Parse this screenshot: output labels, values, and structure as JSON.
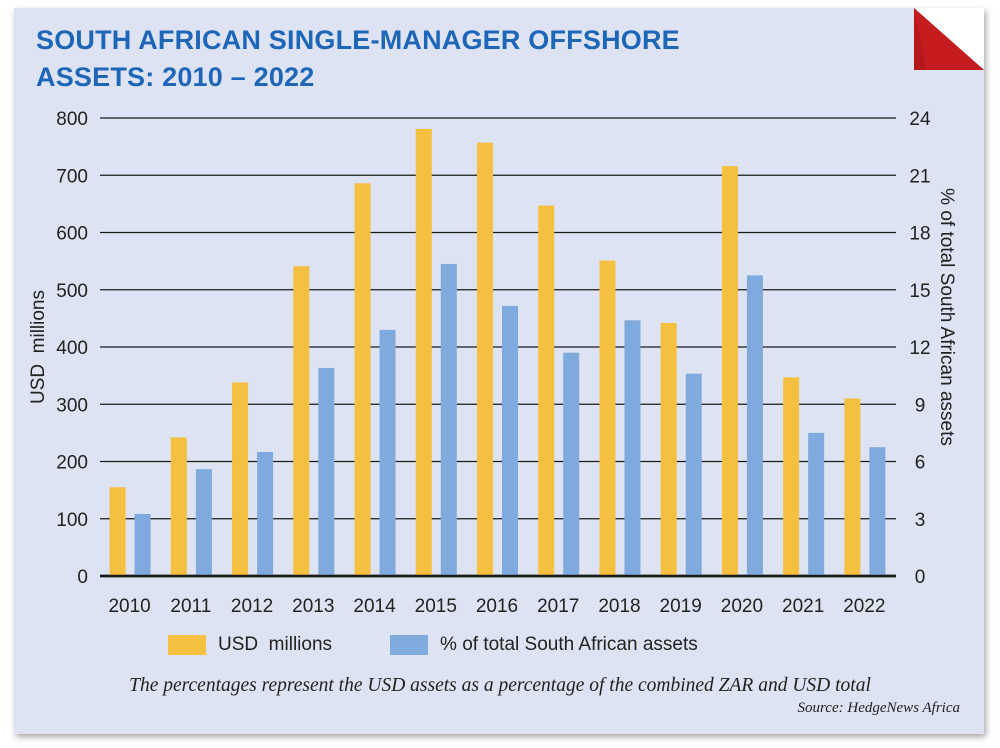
{
  "title_lines": [
    "SOUTH AFRICAN SINGLE-MANAGER OFFSHORE",
    "ASSETS: 2010 – 2022"
  ],
  "footnote": "The percentages represent the USD assets as a percentage of the combined ZAR and USD total",
  "source": "Source: HedgeNews Africa",
  "colors": {
    "background": "#dde3f2",
    "title": "#1d66b8",
    "usd": "#f5bf3f",
    "pct": "#7faadd",
    "corner": "#b5171a"
  },
  "chart_data": {
    "type": "bar",
    "categories": [
      "2010",
      "2011",
      "2012",
      "2013",
      "2014",
      "2015",
      "2016",
      "2017",
      "2018",
      "2019",
      "2020",
      "2021",
      "2022"
    ],
    "series": [
      {
        "name": "USD  millions",
        "axis": "left",
        "color": "#f5bf3f",
        "values": [
          155,
          242,
          338,
          541,
          686,
          781,
          757,
          647,
          551,
          442,
          716,
          347,
          310
        ]
      },
      {
        "name": "% of total South African assets",
        "axis": "right",
        "color": "#7faadd",
        "values": [
          3.25,
          5.6,
          6.5,
          10.9,
          12.9,
          16.35,
          14.15,
          11.7,
          13.4,
          10.6,
          15.75,
          7.5,
          6.75
        ]
      }
    ],
    "ylabel": "USD  millions",
    "ylabel_right": "% of total South African assets",
    "ylim": [
      0,
      800
    ],
    "yticks": [
      0,
      100,
      200,
      300,
      400,
      500,
      600,
      700,
      800
    ],
    "ylim_right": [
      0,
      24
    ],
    "yticks_right": [
      0,
      3,
      6,
      9,
      12,
      15,
      18,
      21,
      24
    ],
    "grid": true,
    "legend": "bottom"
  }
}
